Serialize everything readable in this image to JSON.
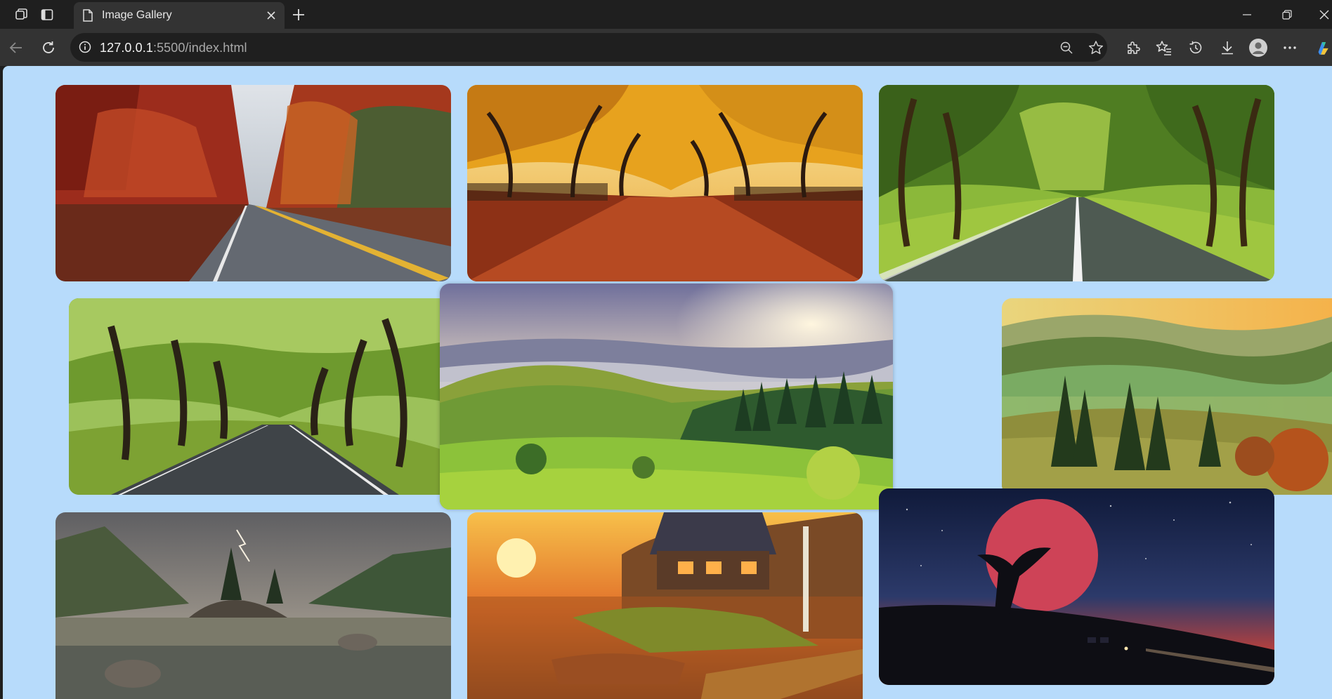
{
  "browser": {
    "tab_title": "Image Gallery",
    "url_host": "127.0.0.1",
    "url_rest": ":5500/index.html"
  },
  "colors": {
    "page_background": "#b7dbfb",
    "chrome_dark": "#1f1f1f",
    "chrome_mid": "#333333"
  },
  "gallery": {
    "images": [
      {
        "subject": "autumn road with red trees"
      },
      {
        "subject": "golden autumn park avenue"
      },
      {
        "subject": "green tree-lined country road"
      },
      {
        "subject": "shaded road under green trees"
      },
      {
        "subject": "misty green valley at sunrise"
      },
      {
        "subject": "foggy hills with pine trees"
      },
      {
        "subject": "lake with rocks under lightning storm"
      },
      {
        "subject": "lakeside cabin at sunset with boat"
      },
      {
        "subject": "red moon with tree and van at night"
      }
    ]
  }
}
